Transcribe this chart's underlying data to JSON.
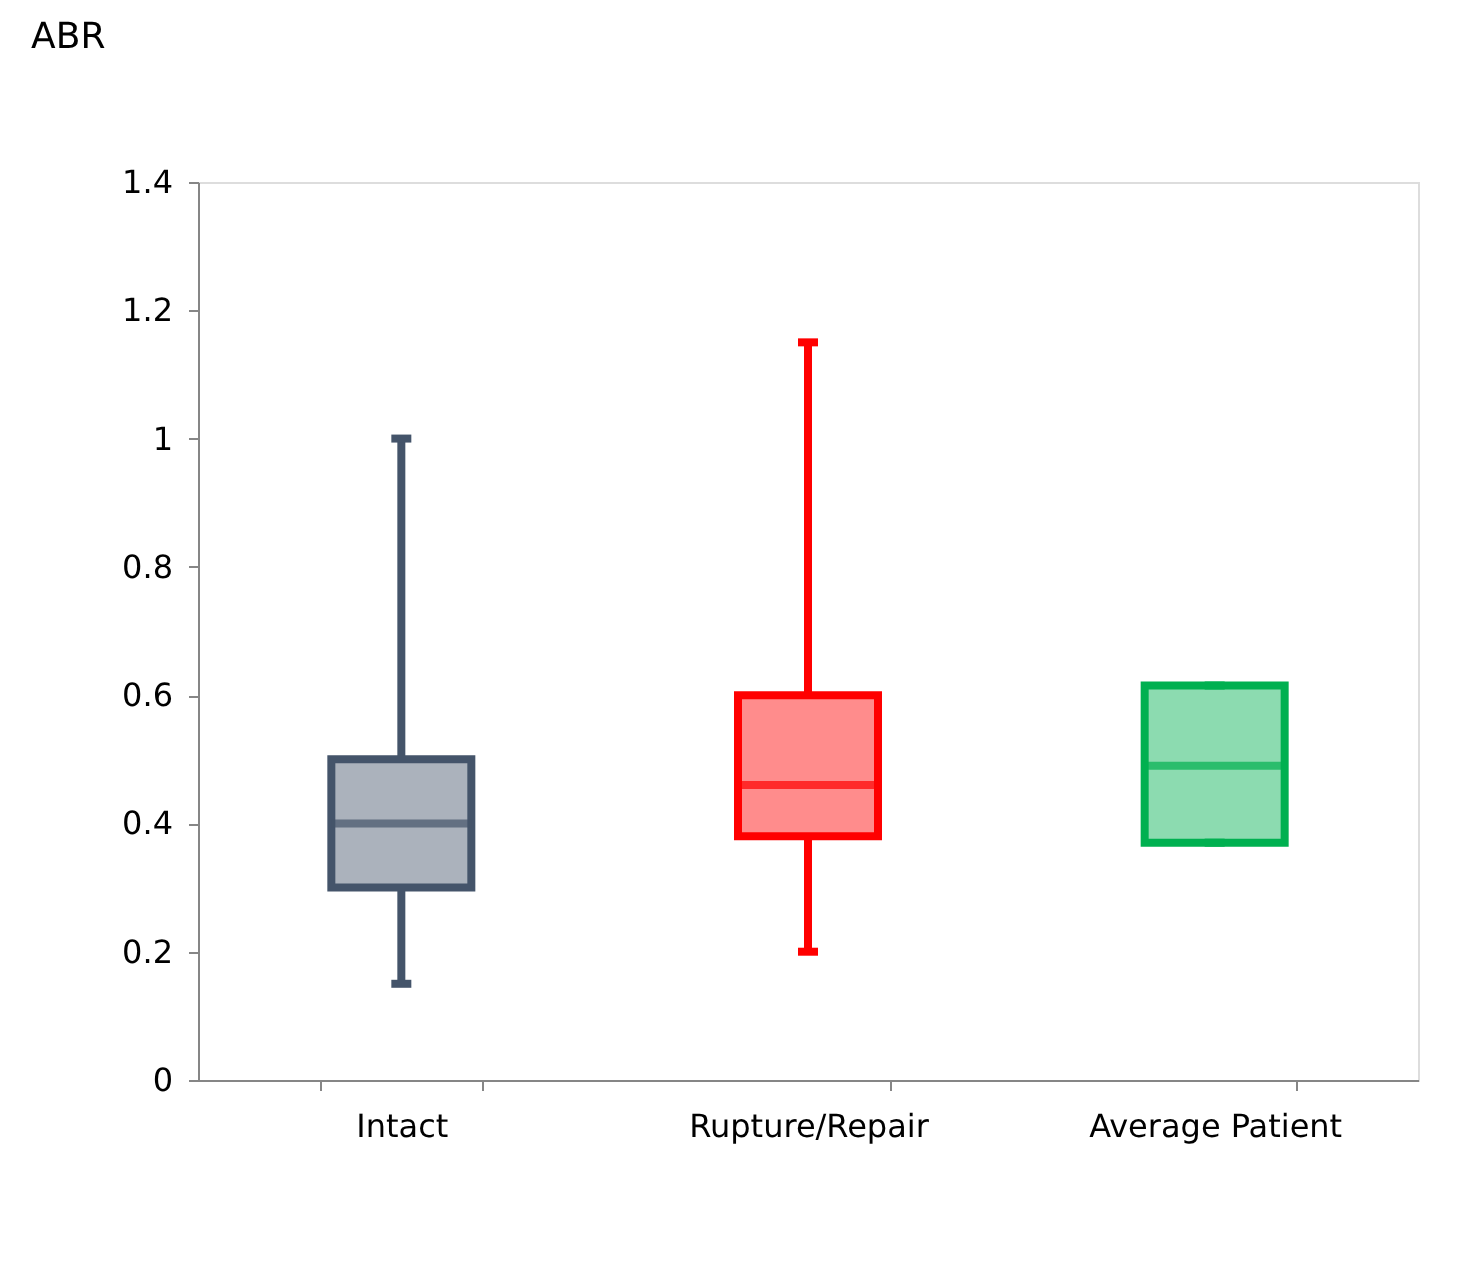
{
  "chart_data": {
    "type": "box",
    "title": "ABR",
    "categories": [
      "Intact",
      "Rupture/Repair",
      "Average Patient"
    ],
    "boxes": [
      {
        "low": 0.15,
        "q1": 0.3,
        "median": 0.4,
        "q3": 0.5,
        "high": 1.0
      },
      {
        "low": 0.2,
        "q1": 0.38,
        "median": 0.46,
        "q3": 0.6,
        "high": 1.15
      },
      {
        "low": 0.37,
        "q1": 0.37,
        "median": 0.49,
        "q3": 0.615,
        "high": 0.615
      }
    ],
    "colors": [
      "#44546a",
      "#ff0000",
      "#00b050"
    ],
    "ylim": [
      0,
      1.4
    ],
    "yticks": [
      0,
      0.2,
      0.4,
      0.6,
      0.8,
      1,
      1.2,
      1.4
    ],
    "grid": false
  }
}
